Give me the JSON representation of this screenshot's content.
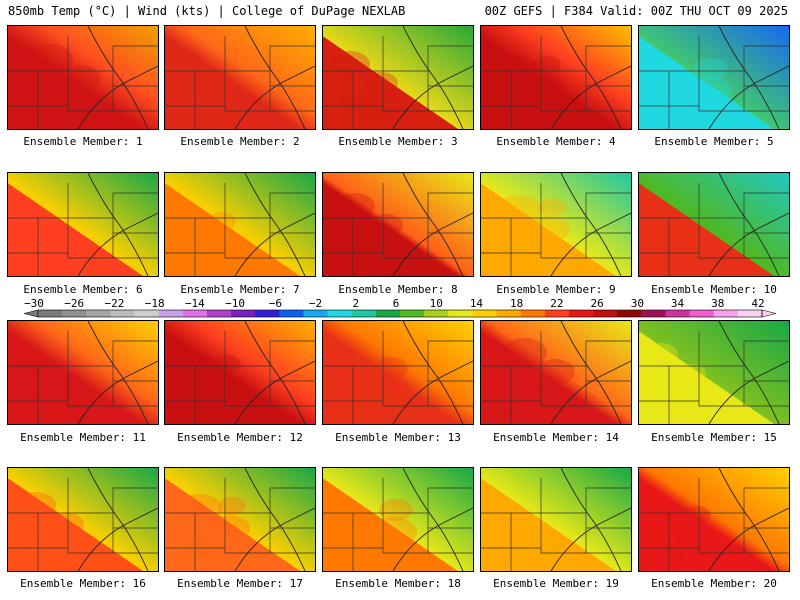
{
  "header": {
    "left": "850mb Temp (°C) | Wind (kts) | College of DuPage NEXLAB",
    "right": "00Z GEFS | F384 Valid: 00Z THU OCT 09 2025"
  },
  "members": [
    {
      "label": "Ensemble Member: 1"
    },
    {
      "label": "Ensemble Member: 2"
    },
    {
      "label": "Ensemble Member: 3"
    },
    {
      "label": "Ensemble Member: 4"
    },
    {
      "label": "Ensemble Member: 5"
    },
    {
      "label": "Ensemble Member: 6"
    },
    {
      "label": "Ensemble Member: 7"
    },
    {
      "label": "Ensemble Member: 8"
    },
    {
      "label": "Ensemble Member: 9"
    },
    {
      "label": "Ensemble Member: 10"
    },
    {
      "label": "Ensemble Member: 11"
    },
    {
      "label": "Ensemble Member: 12"
    },
    {
      "label": "Ensemble Member: 13"
    },
    {
      "label": "Ensemble Member: 14"
    },
    {
      "label": "Ensemble Member: 15"
    },
    {
      "label": "Ensemble Member: 16"
    },
    {
      "label": "Ensemble Member: 17"
    },
    {
      "label": "Ensemble Member: 18"
    },
    {
      "label": "Ensemble Member: 19"
    },
    {
      "label": "Ensemble Member: 20"
    }
  ],
  "colorbar": {
    "tick_labels": [
      "−30",
      "−26",
      "−22",
      "−18",
      "−14",
      "−10",
      "−6",
      "−2",
      "2",
      "6",
      "10",
      "14",
      "18",
      "22",
      "26",
      "30",
      "34",
      "38",
      "42"
    ],
    "colors": [
      "#7a7a7a",
      "#909090",
      "#a6a6a6",
      "#bcbcbc",
      "#cfcfcf",
      "#c9a0e8",
      "#e070e8",
      "#b040c8",
      "#7a20c0",
      "#3020d8",
      "#1060f0",
      "#18a8f0",
      "#20d8e0",
      "#20c8a0",
      "#18a848",
      "#50b820",
      "#a8d018",
      "#e8e818",
      "#ffd000",
      "#ffa800",
      "#ff7800",
      "#ff4020",
      "#e81818",
      "#c01010",
      "#900808",
      "#a01058",
      "#d030a0",
      "#f060d0",
      "#f8a0e8",
      "#f8d0f0"
    ]
  }
}
